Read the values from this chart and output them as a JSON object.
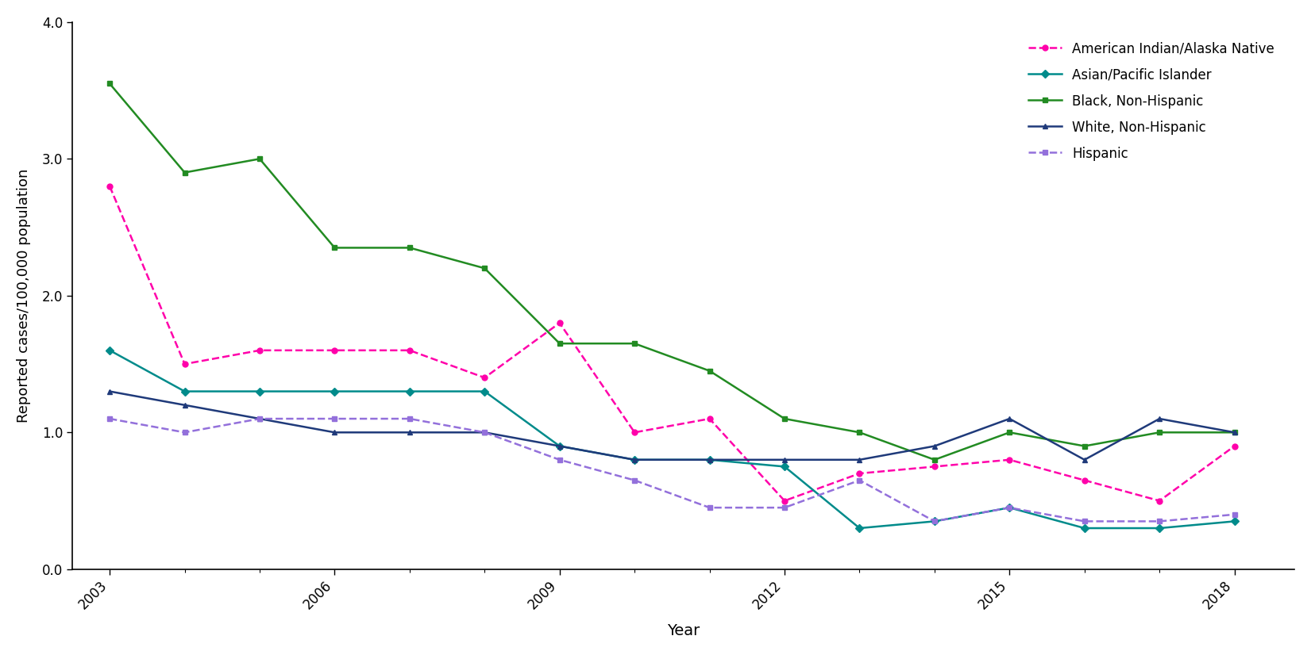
{
  "years": [
    2003,
    2004,
    2005,
    2006,
    2007,
    2008,
    2009,
    2010,
    2011,
    2012,
    2013,
    2014,
    2015,
    2016,
    2017,
    2018
  ],
  "series": {
    "American Indian/Alaska Native": {
      "values": [
        2.8,
        1.5,
        1.6,
        1.6,
        1.6,
        1.4,
        1.8,
        1.0,
        1.1,
        0.5,
        0.7,
        0.75,
        0.8,
        0.65,
        0.5,
        0.9
      ],
      "color": "#FF00AA",
      "linestyle": "--",
      "marker": "o",
      "markersize": 5
    },
    "Asian/Pacific Islander": {
      "values": [
        1.6,
        1.3,
        1.3,
        1.3,
        1.3,
        1.3,
        0.9,
        0.8,
        0.8,
        0.75,
        0.3,
        0.35,
        0.45,
        0.3,
        0.3,
        0.35
      ],
      "color": "#008B8B",
      "linestyle": "-",
      "marker": "D",
      "markersize": 5
    },
    "Black, Non-Hispanic": {
      "values": [
        3.55,
        2.9,
        3.0,
        2.35,
        2.35,
        2.2,
        1.65,
        1.65,
        1.45,
        1.1,
        1.0,
        0.8,
        1.0,
        0.9,
        1.0,
        1.0
      ],
      "color": "#228B22",
      "linestyle": "-",
      "marker": "s",
      "markersize": 5
    },
    "White, Non-Hispanic": {
      "values": [
        1.3,
        1.2,
        1.1,
        1.0,
        1.0,
        1.0,
        0.9,
        0.8,
        0.8,
        0.8,
        0.8,
        0.9,
        1.1,
        0.8,
        1.1,
        1.0
      ],
      "color": "#1F3A7A",
      "linestyle": "-",
      "marker": "^",
      "markersize": 5
    },
    "Hispanic": {
      "values": [
        1.1,
        1.0,
        1.1,
        1.1,
        1.1,
        1.0,
        0.8,
        0.65,
        0.45,
        0.45,
        0.65,
        0.35,
        0.45,
        0.35,
        0.35,
        0.4
      ],
      "color": "#9370DB",
      "linestyle": "--",
      "marker": "s",
      "markersize": 5
    }
  },
  "xlabel": "Year",
  "ylabel": "Reported cases/100,000 population",
  "ylim": [
    0.0,
    4.0
  ],
  "yticks": [
    0.0,
    1.0,
    2.0,
    3.0,
    4.0
  ],
  "xticks_major": [
    2003,
    2006,
    2009,
    2012,
    2015,
    2018
  ],
  "xticks_minor": [
    2003,
    2004,
    2005,
    2006,
    2007,
    2008,
    2009,
    2010,
    2011,
    2012,
    2013,
    2014,
    2015,
    2016,
    2017,
    2018
  ],
  "legend_order": [
    "American Indian/Alaska Native",
    "Asian/Pacific Islander",
    "Black, Non-Hispanic",
    "White, Non-Hispanic",
    "Hispanic"
  ],
  "background_color": "#ffffff",
  "xlim": [
    2002.5,
    2018.8
  ]
}
